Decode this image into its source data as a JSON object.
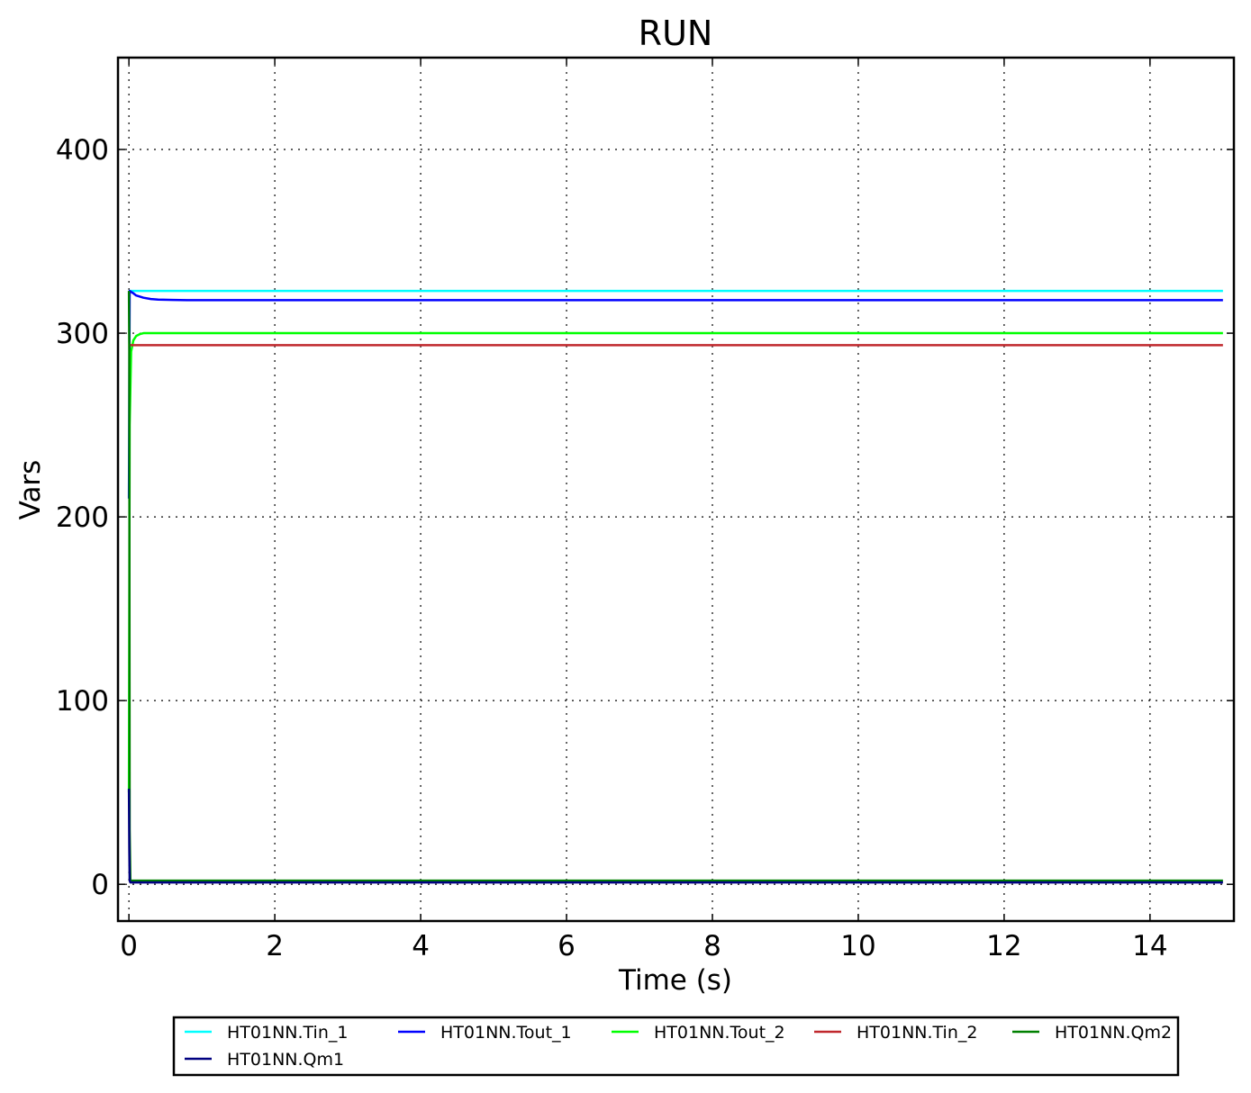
{
  "chart_data": {
    "type": "line",
    "title": "RUN",
    "xlabel": "Time (s)",
    "ylabel": "Vars",
    "xlim": [
      -0.15,
      15.15
    ],
    "ylim": [
      -20,
      450
    ],
    "xticks": [
      0,
      2,
      4,
      6,
      8,
      10,
      12,
      14
    ],
    "xtick_labels": [
      "0",
      "2",
      "4",
      "6",
      "8",
      "10",
      "12",
      "14"
    ],
    "yticks": [
      0,
      100,
      200,
      300,
      400
    ],
    "ytick_labels": [
      "0",
      "100",
      "200",
      "300",
      "400"
    ],
    "grid": true,
    "legend_position": "bottom-center",
    "series": [
      {
        "name": "HT01NN.Tin_1",
        "color": "#00ffff",
        "x": [
          0,
          0.01,
          15
        ],
        "y": [
          323,
          323,
          323
        ]
      },
      {
        "name": "HT01NN.Tout_1",
        "color": "#0000ff",
        "x": [
          0,
          0.01,
          0.05,
          0.1,
          0.2,
          0.3,
          0.4,
          0.6,
          0.8,
          1.0,
          15
        ],
        "y": [
          210,
          323,
          322,
          320.5,
          319.3,
          318.6,
          318.3,
          318.1,
          318.0,
          318.0,
          318.0
        ]
      },
      {
        "name": "HT01NN.Tout_2",
        "color": "#00ff00",
        "x": [
          0,
          0.01,
          0.03,
          0.06,
          0.1,
          0.15,
          0.2,
          0.3,
          15
        ],
        "y": [
          50,
          250,
          290,
          296,
          298.5,
          299.5,
          300,
          300,
          300
        ]
      },
      {
        "name": "HT01NN.Tin_2",
        "color": "#c0282d",
        "x": [
          0,
          15
        ],
        "y": [
          293.5,
          293.5
        ]
      },
      {
        "name": "HT01NN.Qm2",
        "color": "#008000",
        "x": [
          0,
          0.005,
          0.01,
          0.02,
          15
        ],
        "y": [
          323,
          290,
          30,
          2,
          2
        ]
      },
      {
        "name": "HT01NN.Qm1",
        "color": "#000080",
        "x": [
          0,
          0.005,
          0.01,
          0.02,
          15
        ],
        "y": [
          52,
          20,
          2,
          1,
          1
        ]
      }
    ]
  }
}
